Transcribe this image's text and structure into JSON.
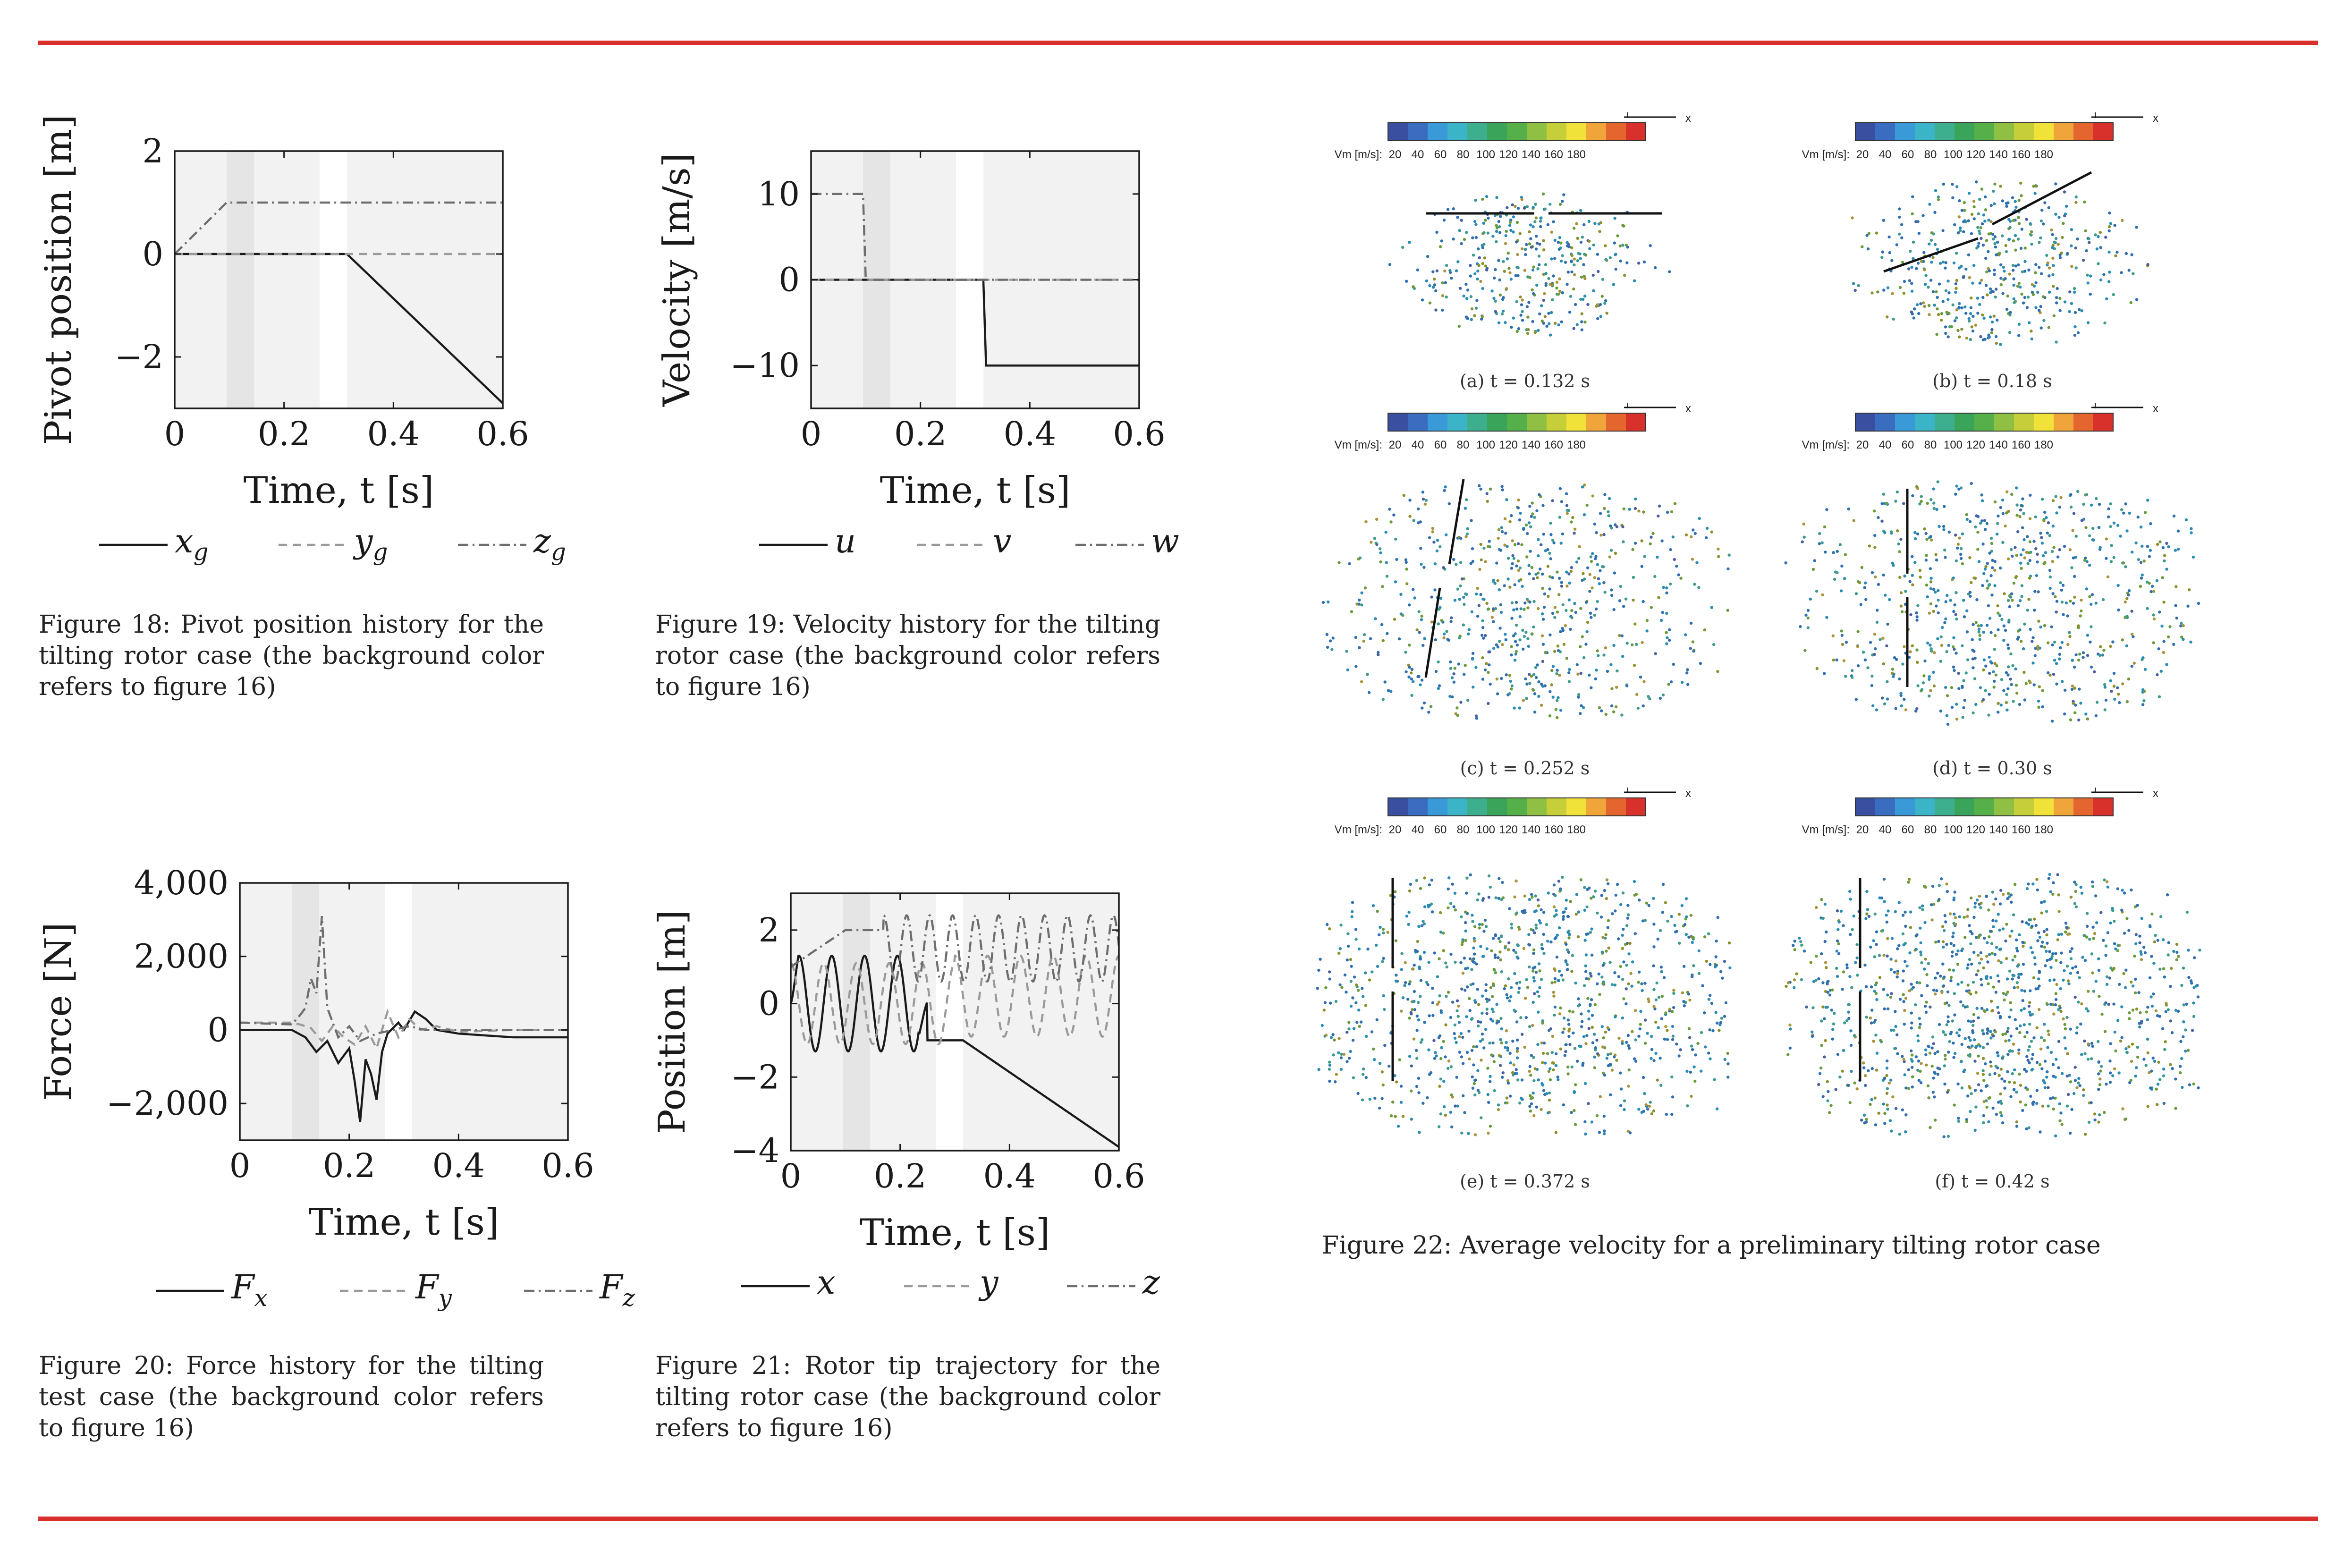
{
  "colors": {
    "rule": "#d9302b",
    "phase_light": "#f1f2f1",
    "phase_dark": "#e4e5e4",
    "series_solid": "#1a1a1a",
    "series_dashed": "#9a9a9a",
    "series_dashdot": "#6e6e6e",
    "colormap": [
      "#3b4fa0",
      "#3a6cc0",
      "#3a9ad8",
      "#3cb4c8",
      "#3daf8e",
      "#3aa55a",
      "#56b04a",
      "#8fc043",
      "#c6cf3a",
      "#f1e23a",
      "#f0a53a",
      "#e5652f",
      "#d8302b"
    ]
  },
  "phases": [
    {
      "from": 0.0,
      "to": 0.095,
      "shade": "light"
    },
    {
      "from": 0.095,
      "to": 0.145,
      "shade": "dark"
    },
    {
      "from": 0.145,
      "to": 0.265,
      "shade": "light"
    },
    {
      "from": 0.315,
      "to": 0.6,
      "shade": "light"
    }
  ],
  "fig18": {
    "chart_data": {
      "type": "line",
      "ylabel": "Pivot position [m]",
      "xlabel": "Time, t [s]",
      "xlim": [
        0,
        0.6
      ],
      "ylim": [
        -3,
        2
      ],
      "xticks": [
        0,
        0.2,
        0.4,
        0.6
      ],
      "xtick_labels": [
        "0",
        "0.2",
        "0.4",
        "0.6"
      ],
      "yticks": [
        -2,
        0,
        2
      ],
      "ytick_labels": [
        "−2",
        "0",
        "2"
      ],
      "series": [
        {
          "name": "x_g",
          "style": "solid",
          "x": [
            0,
            0.315,
            0.6
          ],
          "y": [
            0,
            0,
            -2.9
          ]
        },
        {
          "name": "y_g",
          "style": "dashed",
          "x": [
            0,
            0.6
          ],
          "y": [
            0,
            0
          ]
        },
        {
          "name": "z_g",
          "style": "dashdot",
          "x": [
            0,
            0.095,
            0.6
          ],
          "y": [
            0,
            1,
            1
          ]
        }
      ],
      "legend": [
        {
          "sym": "x",
          "sub": "g",
          "style": "solid"
        },
        {
          "sym": "y",
          "sub": "g",
          "style": "dashed"
        },
        {
          "sym": "z",
          "sub": "g",
          "style": "dashdot"
        }
      ]
    },
    "caption": "Figure 18: Pivot position history for the tilting rotor case (the background color refers to figure 16)"
  },
  "fig19": {
    "chart_data": {
      "type": "line",
      "ylabel": "Velocity [m/s]",
      "xlabel": "Time, t [s]",
      "xlim": [
        0,
        0.6
      ],
      "ylim": [
        -15,
        15
      ],
      "xticks": [
        0,
        0.2,
        0.4,
        0.6
      ],
      "xtick_labels": [
        "0",
        "0.2",
        "0.4",
        "0.6"
      ],
      "yticks": [
        -10,
        0,
        10
      ],
      "ytick_labels": [
        "−10",
        "0",
        "10"
      ],
      "series": [
        {
          "name": "u",
          "style": "solid",
          "x": [
            0,
            0.315,
            0.32,
            0.6
          ],
          "y": [
            0,
            0,
            -10,
            -10
          ]
        },
        {
          "name": "v",
          "style": "dashed",
          "x": [
            0,
            0.6
          ],
          "y": [
            0,
            0
          ]
        },
        {
          "name": "w",
          "style": "dashdot",
          "x": [
            0,
            0.095,
            0.1,
            0.6
          ],
          "y": [
            10,
            10,
            0,
            0
          ]
        }
      ],
      "legend": [
        {
          "sym": "u",
          "sub": "",
          "style": "solid"
        },
        {
          "sym": "v",
          "sub": "",
          "style": "dashed"
        },
        {
          "sym": "w",
          "sub": "",
          "style": "dashdot"
        }
      ]
    },
    "caption": "Figure 19: Velocity history for the tilting rotor case (the background color refers to figure 16)"
  },
  "fig20": {
    "chart_data": {
      "type": "line",
      "ylabel": "Force [N]",
      "xlabel": "Time, t [s]",
      "xlim": [
        0,
        0.6
      ],
      "ylim": [
        -3000,
        4000
      ],
      "xticks": [
        0,
        0.2,
        0.4,
        0.6
      ],
      "xtick_labels": [
        "0",
        "0.2",
        "0.4",
        "0.6"
      ],
      "yticks": [
        -2000,
        0,
        2000,
        4000
      ],
      "ytick_labels": [
        "−2,000",
        "0",
        "2,000",
        "4,000"
      ],
      "series": [
        {
          "name": "F_x",
          "style": "solid",
          "x": [
            0,
            0.095,
            0.12,
            0.14,
            0.16,
            0.18,
            0.2,
            0.21,
            0.22,
            0.23,
            0.24,
            0.25,
            0.26,
            0.27,
            0.29,
            0.3,
            0.31,
            0.32,
            0.34,
            0.36,
            0.4,
            0.45,
            0.5,
            0.6
          ],
          "y": [
            0,
            0,
            -200,
            -600,
            -300,
            -900,
            -500,
            -1400,
            -2500,
            -800,
            -1200,
            -1900,
            -600,
            -100,
            200,
            0,
            250,
            500,
            300,
            0,
            -100,
            -150,
            -200,
            -200
          ]
        },
        {
          "name": "F_y",
          "style": "dashed",
          "x": [
            0,
            0.095,
            0.11,
            0.13,
            0.15,
            0.17,
            0.19,
            0.21,
            0.23,
            0.25,
            0.27,
            0.29,
            0.31,
            0.33,
            0.36,
            0.4,
            0.5,
            0.6
          ],
          "y": [
            200,
            200,
            150,
            50,
            -300,
            100,
            -200,
            -400,
            100,
            -500,
            500,
            -200,
            300,
            0,
            100,
            -50,
            0,
            0
          ]
        },
        {
          "name": "F_z",
          "style": "dashdot",
          "x": [
            0,
            0.095,
            0.11,
            0.12,
            0.13,
            0.14,
            0.15,
            0.16,
            0.18,
            0.2,
            0.22,
            0.25,
            0.28,
            0.31,
            0.34,
            0.4,
            0.5,
            0.6
          ],
          "y": [
            200,
            150,
            400,
            600,
            1400,
            1000,
            3100,
            600,
            -200,
            100,
            -300,
            -100,
            0,
            100,
            0,
            0,
            0,
            0
          ]
        }
      ],
      "legend": [
        {
          "sym": "F",
          "sub": "x",
          "style": "solid"
        },
        {
          "sym": "F",
          "sub": "y",
          "style": "dashed"
        },
        {
          "sym": "F",
          "sub": "z",
          "style": "dashdot"
        }
      ]
    },
    "caption": "Figure 20: Force history for the tilting test case (the background color refers to figure 16)"
  },
  "fig21": {
    "chart_data": {
      "type": "line",
      "ylabel": "Position [m]",
      "xlabel": "Time, t [s]",
      "xlim": [
        0,
        0.6
      ],
      "ylim": [
        -4,
        3
      ],
      "xticks": [
        0,
        0.2,
        0.4,
        0.6
      ],
      "xtick_labels": [
        "0",
        "0.2",
        "0.4",
        "0.6"
      ],
      "yticks": [
        -4,
        -2,
        0,
        2
      ],
      "ytick_labels": [
        "−4",
        "−2",
        "0",
        "2"
      ],
      "series": [
        {
          "name": "x",
          "style": "solid",
          "model": "osc_then_ramp",
          "amp": 1.3,
          "period": 0.06,
          "phase": 0.0,
          "until": 0.25,
          "hold": -1.0,
          "ramp_from": 0.315,
          "ramp_to_value": -3.9
        },
        {
          "name": "y",
          "style": "dashed",
          "model": "osc_offset",
          "amp": 1.1,
          "period": 0.06,
          "phase": 1.57,
          "center_start": 0.0,
          "center_shift_at": 0.3,
          "center_end": 0.2
        },
        {
          "name": "z",
          "style": "dashdot",
          "model": "rise_then_osc",
          "start": 1.0,
          "rise_to": 2.0,
          "rise_end": 0.1,
          "osc_start": 0.17,
          "amp": 0.9,
          "period": 0.042,
          "center_end": 1.5
        }
      ],
      "legend": [
        {
          "sym": "x",
          "sub": "",
          "style": "solid"
        },
        {
          "sym": "y",
          "sub": "",
          "style": "dashed"
        },
        {
          "sym": "z",
          "sub": "",
          "style": "dashdot"
        }
      ]
    },
    "caption": "Figure 21: Rotor tip trajectory for the tilting rotor case (the background color refers to figure 16)"
  },
  "fig22": {
    "colorbar_label": "Vm [m/s]:",
    "colorbar_ticks": [
      "20",
      "40",
      "60",
      "80",
      "100",
      "120",
      "140",
      "160",
      "180"
    ],
    "axis_label": "x",
    "panels": [
      {
        "caption": "(a) t = 0.132 s",
        "seed": 3,
        "spread": 0.35,
        "density": 380
      },
      {
        "caption": "(b) t = 0.18 s",
        "seed": 7,
        "spread": 0.5,
        "density": 480
      },
      {
        "caption": "(c) t = 0.252 s",
        "seed": 11,
        "spread": 0.85,
        "density": 700
      },
      {
        "caption": "(d) t = 0.30 s",
        "seed": 13,
        "spread": 0.9,
        "density": 800
      },
      {
        "caption": "(e) t = 0.372 s",
        "seed": 17,
        "spread": 1.0,
        "density": 1100
      },
      {
        "caption": "(f) t = 0.42 s",
        "seed": 19,
        "spread": 1.0,
        "density": 1200
      }
    ],
    "caption": "Figure 22: Average velocity for a preliminary tilting rotor case"
  }
}
